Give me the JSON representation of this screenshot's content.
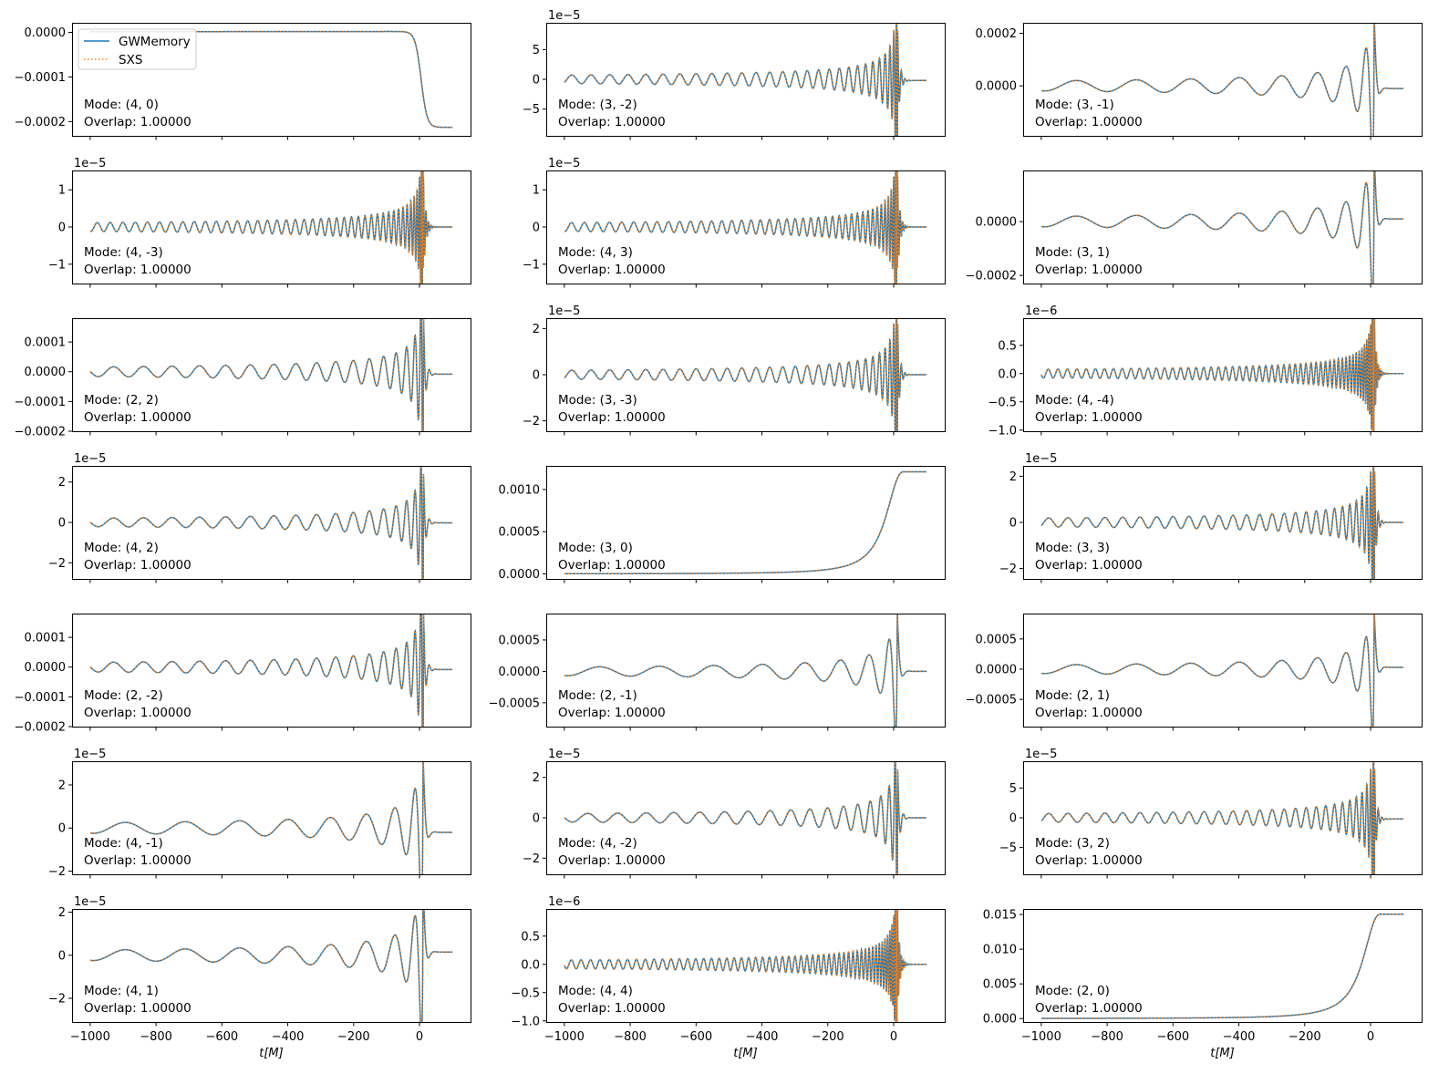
{
  "legend": {
    "location": "upper-left of first panel",
    "entries": [
      {
        "name": "GWMemory",
        "style": "solid",
        "color": "#1f77b4"
      },
      {
        "name": "SXS",
        "style": "dotted",
        "color": "#ff7f0e"
      }
    ]
  },
  "x_label": "t[M]",
  "x_ticks": [
    -1000,
    -800,
    -600,
    -400,
    -200,
    0
  ],
  "xlim": [
    -1055,
    155
  ],
  "overlap_prefix": "Overlap: ",
  "mode_prefix": "Mode: ",
  "chart_data": [
    {
      "type": "line",
      "mode": "(4, 0)",
      "overlap": "1.00000",
      "kind": "memory_down",
      "amp": 0.000215,
      "offset_text": "",
      "ylim": [
        -0.000232,
        2.15e-05
      ],
      "yticks": [
        0,
        -0.0001,
        -0.0002
      ],
      "ytick_labels": [
        "0.0000",
        "−0.0001",
        "−0.0002"
      ]
    },
    {
      "type": "line",
      "mode": "(3, -2)",
      "overlap": "1.00000",
      "kind": "osc",
      "amp": 8.2e-05,
      "fc": 8,
      "growth": 5,
      "post": -2e-06,
      "offset_text": "1e−5",
      "ylim": [
        -9.5e-05,
        9.5e-05
      ],
      "yticks": [
        5e-05,
        0,
        -5e-05
      ],
      "ytick_labels": [
        "5",
        "0",
        "−5"
      ]
    },
    {
      "type": "line",
      "mode": "(3, -1)",
      "overlap": "1.00000",
      "kind": "osc",
      "amp": 0.00022,
      "fc": 2.4,
      "growth": 2.6,
      "post": -1e-05,
      "offset_text": "",
      "ylim": [
        -0.00019,
        0.00024
      ],
      "yticks": [
        0.0002,
        0
      ],
      "ytick_labels": [
        "0.0002",
        "0.0000"
      ]
    },
    {
      "type": "line",
      "mode": "(4, -3)",
      "overlap": "1.00000",
      "kind": "osc",
      "amp": 1.35e-05,
      "fc": 12,
      "growth": 5,
      "post": 0,
      "offset_text": "1e−5",
      "ylim": [
        -1.52e-05,
        1.52e-05
      ],
      "yticks": [
        1e-05,
        0,
        -1e-05
      ],
      "ytick_labels": [
        "1",
        "0",
        "−1"
      ]
    },
    {
      "type": "line",
      "mode": "(4, 3)",
      "overlap": "1.00000",
      "kind": "osc",
      "amp": 1.35e-05,
      "fc": 12,
      "growth": 5,
      "post": 0,
      "offset_text": "1e−5",
      "ylim": [
        -1.52e-05,
        1.52e-05
      ],
      "yticks": [
        1e-05,
        0,
        -1e-05
      ],
      "ytick_labels": [
        "1",
        "0",
        "−1"
      ]
    },
    {
      "type": "line",
      "mode": "(3, 1)",
      "overlap": "1.00000",
      "kind": "osc",
      "amp": 0.00022,
      "fc": 2.4,
      "growth": 2.6,
      "post": 1e-05,
      "offset_text": "",
      "ylim": [
        -0.00023,
        0.00019
      ],
      "yticks": [
        0,
        -0.0002
      ],
      "ytick_labels": [
        "0.0000",
        "−0.0002"
      ]
    },
    {
      "type": "line",
      "mode": "(2, 2)",
      "overlap": "1.00000",
      "kind": "osc",
      "amp": 0.000185,
      "fc": 5,
      "growth": 4,
      "post": -8e-06,
      "offset_text": "",
      "ylim": [
        -0.0002,
        0.00018
      ],
      "yticks": [
        0.0001,
        0,
        -0.0001,
        -0.0002
      ],
      "ytick_labels": [
        "0.0001",
        "0.0000",
        "−0.0001",
        "−0.0002"
      ]
    },
    {
      "type": "line",
      "mode": "(3, -3)",
      "overlap": "1.00000",
      "kind": "osc",
      "amp": 2.2e-05,
      "fc": 8,
      "growth": 5,
      "post": 0,
      "offset_text": "1e−5",
      "ylim": [
        -2.45e-05,
        2.45e-05
      ],
      "yticks": [
        2e-05,
        0,
        -2e-05
      ],
      "ytick_labels": [
        "2",
        "0",
        "−2"
      ]
    },
    {
      "type": "line",
      "mode": "(4, -4)",
      "overlap": "1.00000",
      "kind": "osc",
      "amp": 8.8e-07,
      "fc": 16,
      "growth": 6,
      "post": 0,
      "offset_text": "1e−6",
      "ylim": [
        -1.02e-06,
        9.8e-07
      ],
      "yticks": [
        5e-07,
        0,
        -5e-07,
        -1e-06
      ],
      "ytick_labels": [
        "0.5",
        "0.0",
        "−0.5",
        "−1.0"
      ]
    },
    {
      "type": "line",
      "mode": "(4, 2)",
      "overlap": "1.00000",
      "kind": "osc",
      "amp": 2.4e-05,
      "fc": 5,
      "growth": 4,
      "post": -2e-07,
      "offset_text": "1e−5",
      "ylim": [
        -2.8e-05,
        2.8e-05
      ],
      "yticks": [
        2e-05,
        0,
        -2e-05
      ],
      "ytick_labels": [
        "2",
        "0",
        "−2"
      ]
    },
    {
      "type": "line",
      "mode": "(3, 0)",
      "overlap": "1.00000",
      "kind": "memory_up",
      "amp": 0.00121,
      "offset_text": "",
      "ylim": [
        -6e-05,
        0.00128
      ],
      "yticks": [
        0.001,
        0.0005,
        0
      ],
      "ytick_labels": [
        "0.0010",
        "0.0005",
        "0.0000"
      ]
    },
    {
      "type": "line",
      "mode": "(3, 3)",
      "overlap": "1.00000",
      "kind": "osc",
      "amp": 2.2e-05,
      "fc": 8,
      "growth": 5,
      "post": 0,
      "offset_text": "1e−5",
      "ylim": [
        -2.45e-05,
        2.45e-05
      ],
      "yticks": [
        2e-05,
        0,
        -2e-05
      ],
      "ytick_labels": [
        "2",
        "0",
        "−2"
      ]
    },
    {
      "type": "line",
      "mode": "(2, -2)",
      "overlap": "1.00000",
      "kind": "osc",
      "amp": 0.000185,
      "fc": 5,
      "growth": 4,
      "post": -8e-06,
      "offset_text": "",
      "ylim": [
        -0.0002,
        0.00018
      ],
      "yticks": [
        0.0001,
        0,
        -0.0001,
        -0.0002
      ],
      "ytick_labels": [
        "0.0001",
        "0.0000",
        "−0.0001",
        "−0.0002"
      ]
    },
    {
      "type": "line",
      "mode": "(2, -1)",
      "overlap": "1.00000",
      "kind": "osc",
      "amp": 0.00078,
      "fc": 2.4,
      "growth": 2.6,
      "post": 0,
      "offset_text": "",
      "ylim": [
        -0.00088,
        0.00092
      ],
      "yticks": [
        0.0005,
        0,
        -0.0005
      ],
      "ytick_labels": [
        "0.0005",
        "0.0000",
        "−0.0005"
      ]
    },
    {
      "type": "line",
      "mode": "(2, 1)",
      "overlap": "1.00000",
      "kind": "osc",
      "amp": 0.00082,
      "fc": 2.4,
      "growth": 2.6,
      "post": 3e-05,
      "offset_text": "",
      "ylim": [
        -0.00095,
        0.00092
      ],
      "yticks": [
        0.0005,
        0,
        -0.0005
      ],
      "ytick_labels": [
        "0.0005",
        "0.0000",
        "−0.0005"
      ]
    },
    {
      "type": "line",
      "mode": "(4, -1)",
      "overlap": "1.00000",
      "kind": "osc",
      "amp": 2.8e-05,
      "fc": 2.4,
      "growth": 2.6,
      "post": -2e-06,
      "offset_text": "1e−5",
      "ylim": [
        -2.15e-05,
        3.1e-05
      ],
      "yticks": [
        2e-05,
        0,
        -2e-05
      ],
      "ytick_labels": [
        "2",
        "0",
        "−2"
      ]
    },
    {
      "type": "line",
      "mode": "(4, -2)",
      "overlap": "1.00000",
      "kind": "osc",
      "amp": 2.4e-05,
      "fc": 5,
      "growth": 4,
      "post": 0,
      "offset_text": "1e−5",
      "ylim": [
        -2.8e-05,
        2.8e-05
      ],
      "yticks": [
        2e-05,
        0,
        -2e-05
      ],
      "ytick_labels": [
        "2",
        "0",
        "−2"
      ]
    },
    {
      "type": "line",
      "mode": "(3, 2)",
      "overlap": "1.00000",
      "kind": "osc",
      "amp": 8.2e-05,
      "fc": 8,
      "growth": 5,
      "post": -2e-06,
      "offset_text": "1e−5",
      "ylim": [
        -9.5e-05,
        9.5e-05
      ],
      "yticks": [
        5e-05,
        0,
        -5e-05
      ],
      "ytick_labels": [
        "5",
        "0",
        "−5"
      ]
    },
    {
      "type": "line",
      "mode": "(4, 1)",
      "overlap": "1.00000",
      "kind": "osc",
      "amp": 2.8e-05,
      "fc": 2.4,
      "growth": 2.6,
      "post": 1.5e-06,
      "offset_text": "1e−5",
      "ylim": [
        -3.1e-05,
        2.15e-05
      ],
      "yticks": [
        2e-05,
        0,
        -2e-05
      ],
      "ytick_labels": [
        "2",
        "0",
        "−2"
      ]
    },
    {
      "type": "line",
      "mode": "(4, 4)",
      "overlap": "1.00000",
      "kind": "osc",
      "amp": 8.8e-07,
      "fc": 16,
      "growth": 6,
      "post": 0,
      "offset_text": "1e−6",
      "ylim": [
        -1.02e-06,
        9.8e-07
      ],
      "yticks": [
        5e-07,
        0,
        -5e-07,
        -1e-06
      ],
      "ytick_labels": [
        "0.5",
        "0.0",
        "−0.5",
        "−1.0"
      ]
    },
    {
      "type": "line",
      "mode": "(2, 0)",
      "overlap": "1.00000",
      "kind": "memory_up",
      "amp": 0.01505,
      "offset_text": "",
      "ylim": [
        -0.0005,
        0.0158
      ],
      "yticks": [
        0.015,
        0.01,
        0.005,
        0
      ],
      "ytick_labels": [
        "0.015",
        "0.010",
        "0.005",
        "0.000"
      ]
    }
  ]
}
